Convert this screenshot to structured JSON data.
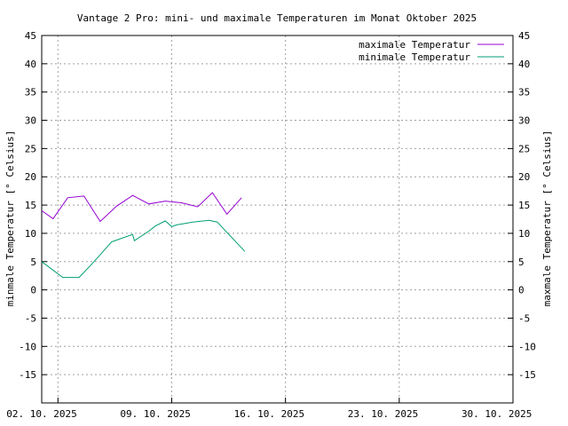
{
  "chart_data": {
    "type": "line",
    "title": "Vantage 2 Pro: mini- und maximale Temperaturen im Monat Oktober 2025",
    "ylabel_left": "minmale Temperatur [° Celsius]",
    "ylabel_right": "maxmale Temperatur [° Celsius]",
    "ylim": [
      -20,
      45
    ],
    "yticks": [
      -15,
      -10,
      -5,
      0,
      5,
      10,
      15,
      20,
      25,
      30,
      35,
      40,
      45
    ],
    "xticks": [
      {
        "day": 2,
        "label": "02. 10. 2025"
      },
      {
        "day": 9,
        "label": "09. 10. 2025"
      },
      {
        "day": 16,
        "label": "16. 10. 2025"
      },
      {
        "day": 23,
        "label": "23. 10. 2025"
      },
      {
        "day": 30,
        "label": "30. 10. 2025"
      }
    ],
    "xlim": [
      2,
      31
    ],
    "x_grid_days": [
      3,
      10,
      17,
      24,
      31
    ],
    "grid": true,
    "legend_position": "top-right",
    "series": [
      {
        "name": "maximale Temperatur",
        "color": "#9400d3",
        "x": [
          2.0,
          2.7,
          3.6,
          4.6,
          5.6,
          6.6,
          7.6,
          8.6,
          9.6,
          10.6,
          11.6,
          12.5,
          13.4,
          14.3
        ],
        "values": [
          14.0,
          12.6,
          16.3,
          16.6,
          12.1,
          14.8,
          16.7,
          15.2,
          15.7,
          15.4,
          14.7,
          17.2,
          13.4,
          16.3
        ]
      },
      {
        "name": "minimale Temperatur",
        "color": "#009e73",
        "x": [
          2.0,
          3.3,
          4.3,
          5.0,
          5.6,
          6.3,
          7.6,
          7.7,
          8.6,
          9.0,
          9.6,
          10.0,
          10.3,
          11.3,
          12.3,
          12.8,
          14.5
        ],
        "values": [
          5.0,
          2.2,
          2.2,
          4.3,
          6.2,
          8.5,
          9.8,
          8.7,
          10.4,
          11.3,
          12.2,
          11.2,
          11.5,
          12.0,
          12.3,
          12.0,
          6.8
        ]
      }
    ]
  }
}
